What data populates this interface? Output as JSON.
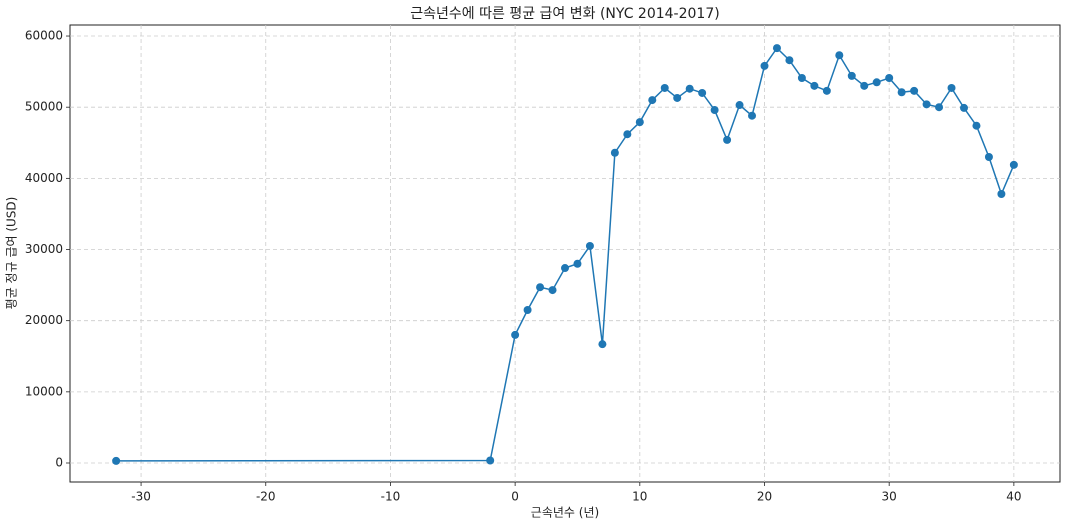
{
  "chart_data": {
    "type": "line",
    "title": "근속년수에 따른 평균 급여 변화 (NYC 2014-2017)",
    "x_label": "근속년수 (년)",
    "y_label": "평균 정규 급여 (USD)",
    "x": [
      -32,
      -2,
      0,
      1,
      2,
      3,
      4,
      5,
      6,
      7,
      8,
      9,
      10,
      11,
      12,
      13,
      14,
      15,
      16,
      17,
      18,
      19,
      20,
      21,
      22,
      23,
      24,
      25,
      26,
      27,
      28,
      29,
      30,
      31,
      32,
      33,
      34,
      35,
      36,
      37,
      38,
      39,
      40
    ],
    "series": [
      {
        "name": "평균 정규 급여",
        "color": "#1f77b4",
        "values": [
          300,
          350,
          18000,
          21500,
          24700,
          24300,
          27400,
          28000,
          30500,
          16700,
          43600,
          46200,
          47900,
          51000,
          52700,
          51300,
          52600,
          52000,
          49600,
          45400,
          50300,
          48800,
          55800,
          58300,
          56600,
          54100,
          53000,
          52300,
          57300,
          54400,
          53000,
          53500,
          54100,
          52100,
          52300,
          50400,
          50000,
          52700,
          49900,
          47400,
          43000,
          37800,
          41900
        ]
      }
    ],
    "xlim": [
      -35.7,
      43.7
    ],
    "ylim": [
      -2670,
      61550
    ],
    "xticks": [
      -30,
      -20,
      -10,
      0,
      10,
      20,
      30,
      40
    ],
    "yticks": [
      0,
      10000,
      20000,
      30000,
      40000,
      50000,
      60000
    ],
    "grid": true
  }
}
